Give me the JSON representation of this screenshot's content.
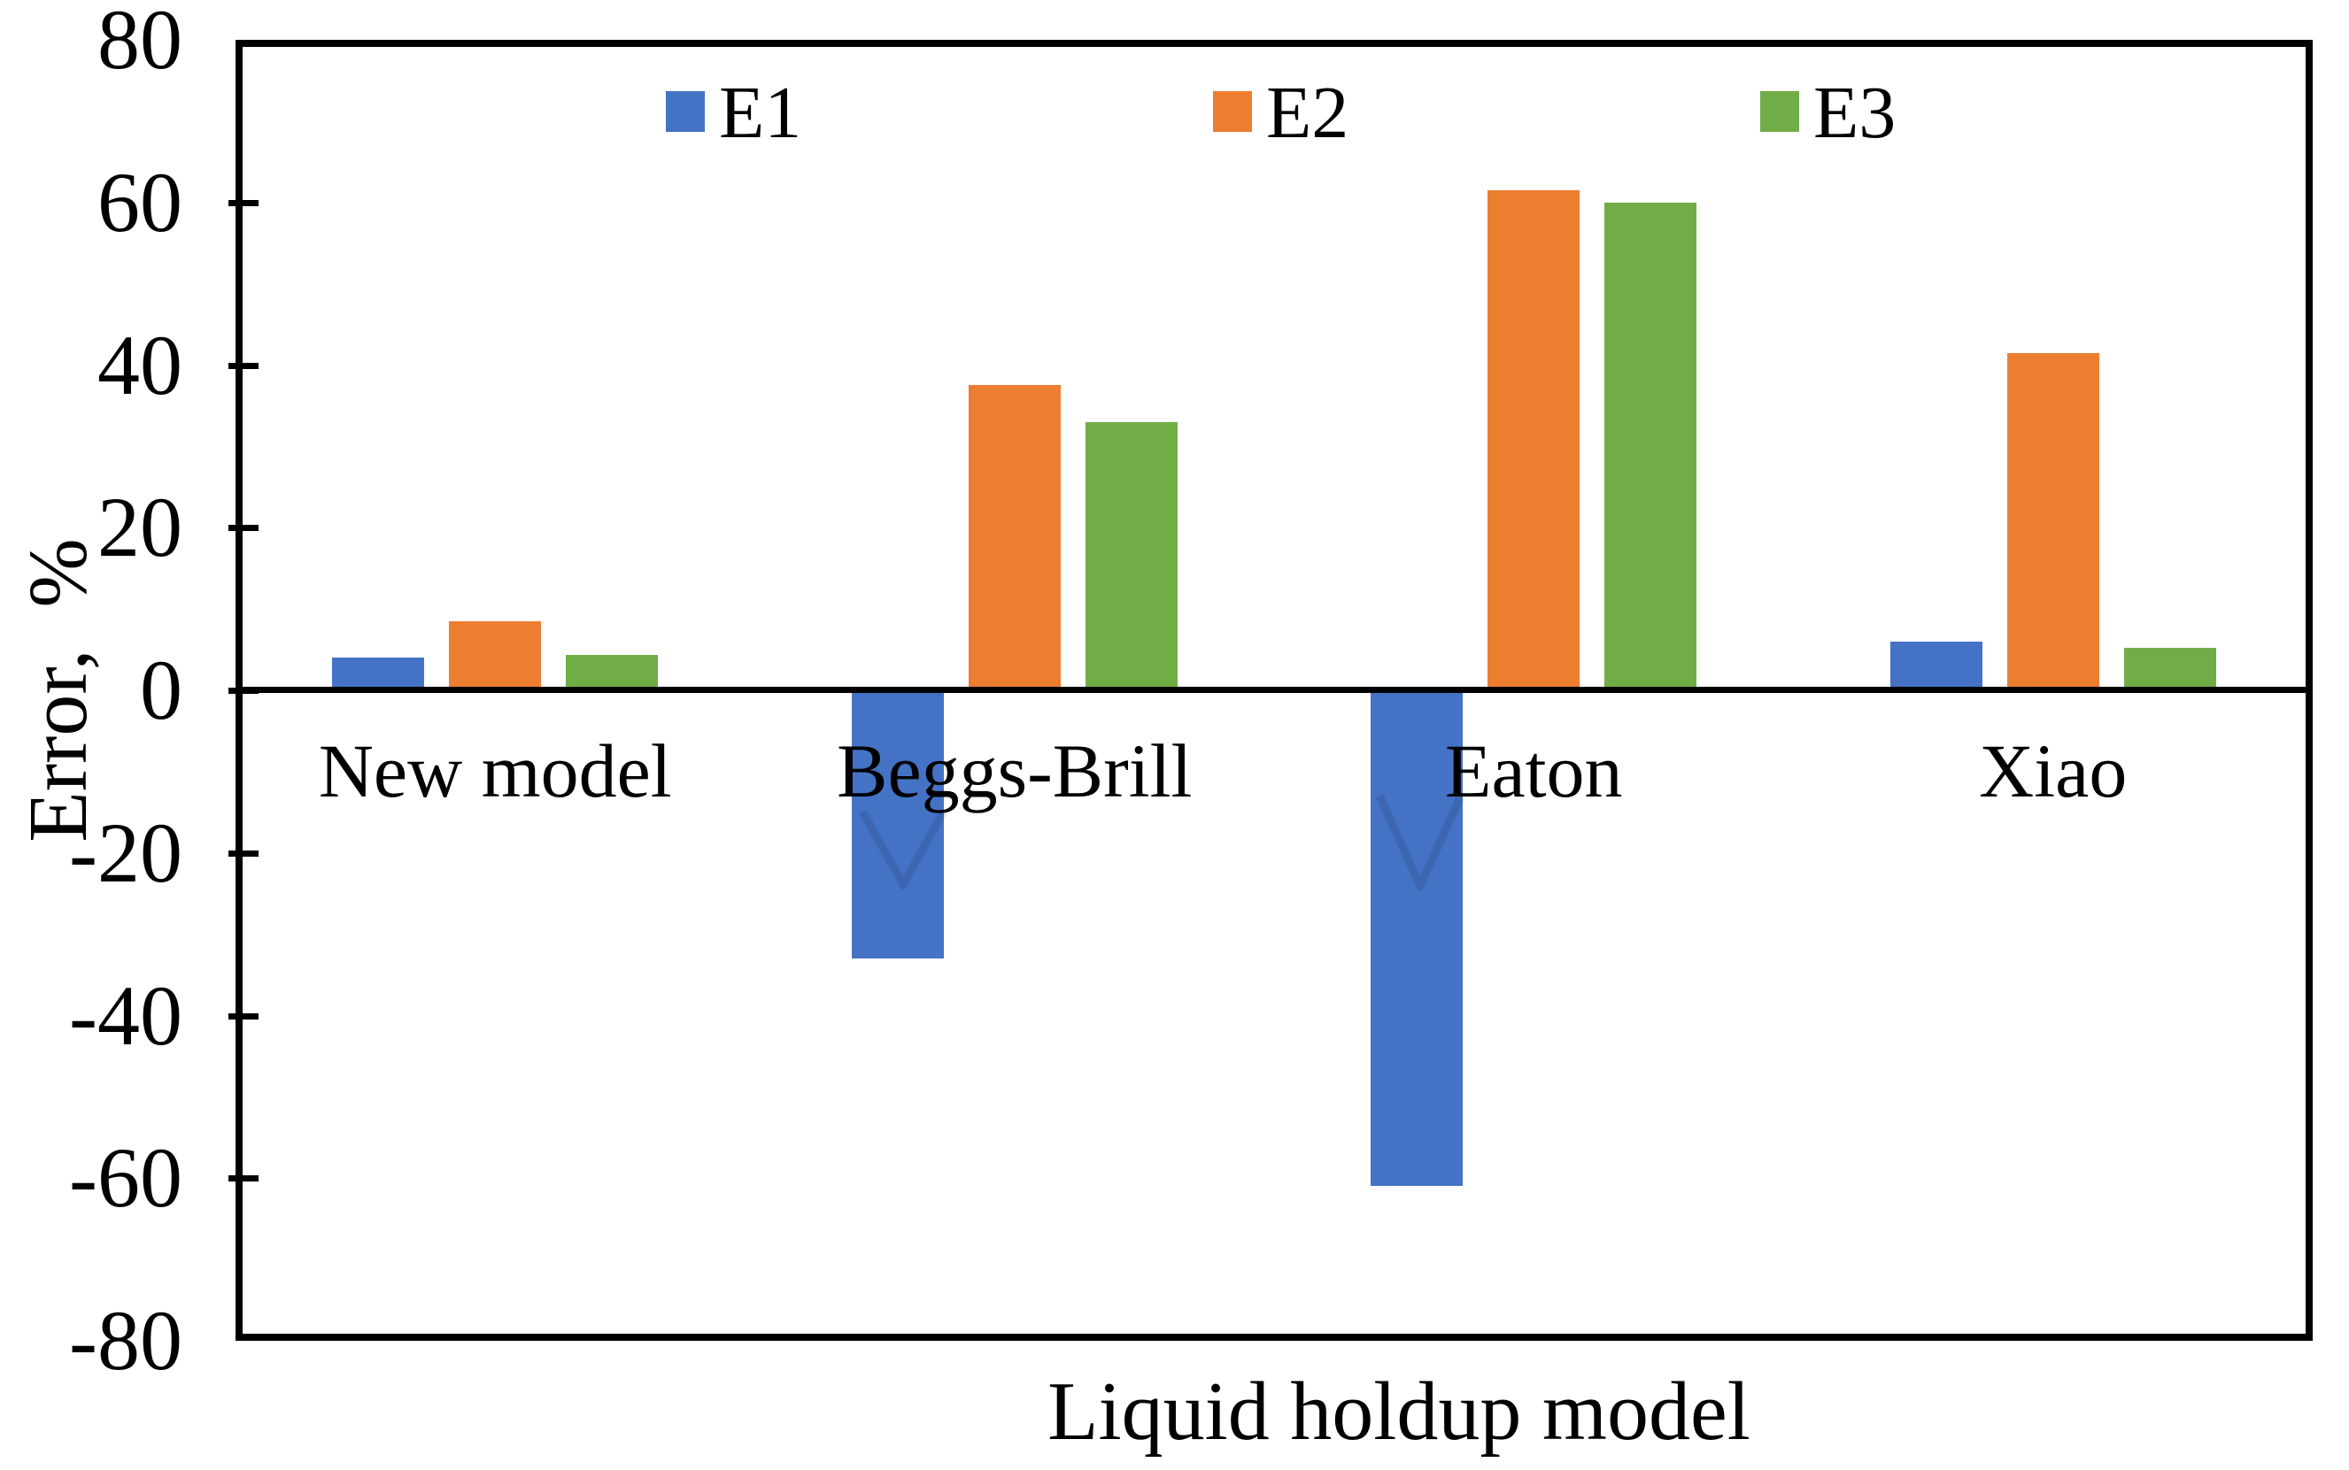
{
  "figure": {
    "background": "#ffffff",
    "axis_color": "#000000"
  },
  "chart_data": {
    "type": "bar",
    "title": "",
    "xlabel": "Liquid holdup model",
    "ylabel": "Error,  %",
    "categories": [
      "New model",
      "Beggs-Brill",
      "Eaton",
      "Xiao"
    ],
    "series": [
      {
        "name": "E1",
        "color": "#4472C4",
        "values": [
          4,
          -33,
          -61,
          6
        ]
      },
      {
        "name": "E2",
        "color": "#ED7D31",
        "values": [
          8.5,
          37.5,
          61.5,
          41.5
        ]
      },
      {
        "name": "E3",
        "color": "#70AD47",
        "values": [
          4.3,
          33,
          60,
          5.2
        ]
      }
    ],
    "ylim": [
      -80,
      80
    ],
    "ytick_step": 20,
    "ytick_labels": [
      "80",
      "60",
      "40",
      "20",
      "0",
      "-20",
      "-40",
      "-60",
      "-80"
    ],
    "grid": false,
    "legend_position": "top-inside",
    "legend_entries": [
      "E1",
      "E2",
      "E3"
    ]
  }
}
